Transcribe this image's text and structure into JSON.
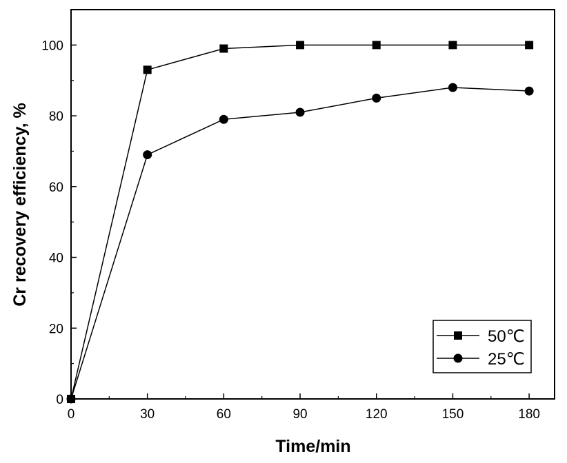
{
  "chart_data": {
    "type": "line",
    "xlabel": "Time/min",
    "ylabel": "Cr recovery efficiency, %",
    "xlim": [
      0,
      190
    ],
    "ylim": [
      0,
      110
    ],
    "xticks": [
      0,
      30,
      60,
      90,
      120,
      150,
      180
    ],
    "yticks": [
      0,
      20,
      40,
      60,
      80,
      100
    ],
    "x_tick_labels": [
      "0",
      "30",
      "60",
      "90",
      "120",
      "150",
      "180"
    ],
    "y_tick_labels": [
      "0",
      "20",
      "40",
      "60",
      "80",
      "100"
    ],
    "grid": false,
    "legend_position": "bottom-right",
    "x": [
      0,
      30,
      60,
      90,
      120,
      150,
      180
    ],
    "series": [
      {
        "name": "50℃",
        "marker": "square",
        "color": "#000000",
        "values": [
          0,
          93,
          99,
          100,
          100,
          100,
          100
        ]
      },
      {
        "name": "25℃",
        "marker": "circle",
        "color": "#000000",
        "values": [
          0,
          69,
          79,
          81,
          85,
          88,
          87
        ]
      }
    ]
  }
}
